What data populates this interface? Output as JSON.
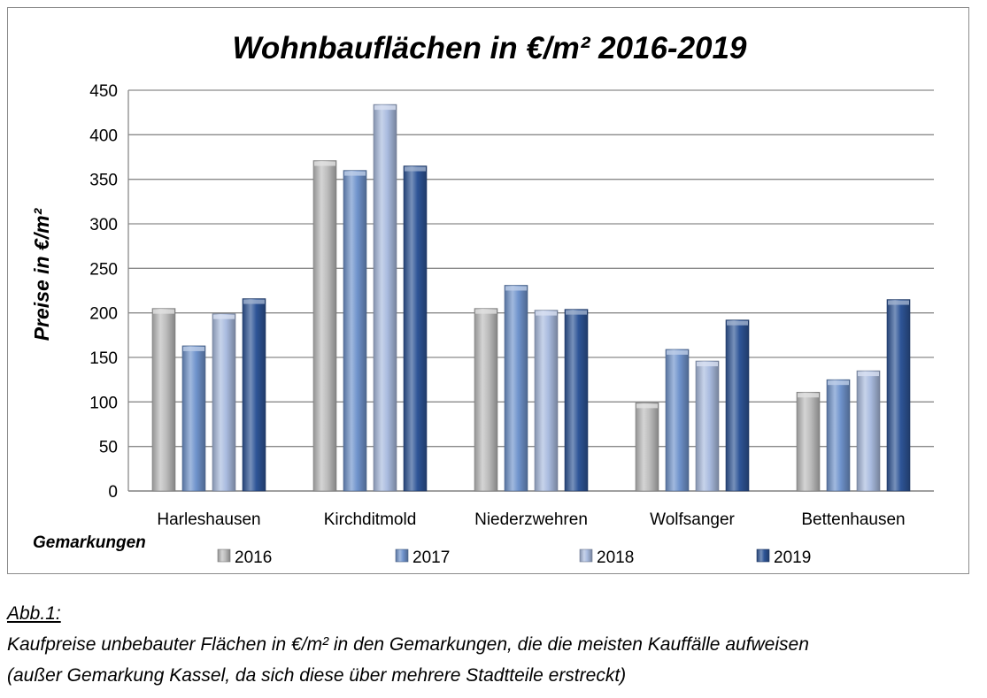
{
  "chart_data": {
    "type": "bar",
    "title": "Wohnbauflächen in €/m² 2016-2019",
    "xlabel": "Gemarkungen",
    "ylabel": "Preise in €/m²",
    "ylim": [
      0,
      450
    ],
    "yticks": [
      0,
      50,
      100,
      150,
      200,
      250,
      300,
      350,
      400,
      450
    ],
    "grid": true,
    "legend_position": "bottom",
    "categories": [
      "Harleshausen",
      "Kirchditmold",
      "Niederzwehren",
      "Wolfsanger",
      "Bettenhausen"
    ],
    "series": [
      {
        "name": "2016",
        "color": "#bdbdbd",
        "values": [
          205,
          371,
          205,
          99,
          111
        ]
      },
      {
        "name": "2017",
        "color": "#6f93cc",
        "values": [
          163,
          360,
          231,
          159,
          125
        ]
      },
      {
        "name": "2018",
        "color": "#a9bbdf",
        "values": [
          199,
          434,
          203,
          146,
          135
        ]
      },
      {
        "name": "2019",
        "color": "#2e5597",
        "values": [
          216,
          365,
          204,
          192,
          215
        ]
      }
    ]
  },
  "caption": {
    "label": "Abb.1:",
    "line1": "Kaufpreise unbebauter Flächen in €/m² in den Gemarkungen, die die meisten Kauffälle aufweisen",
    "line2": "(außer Gemarkung Kassel, da sich diese über mehrere Stadtteile erstreckt)"
  }
}
